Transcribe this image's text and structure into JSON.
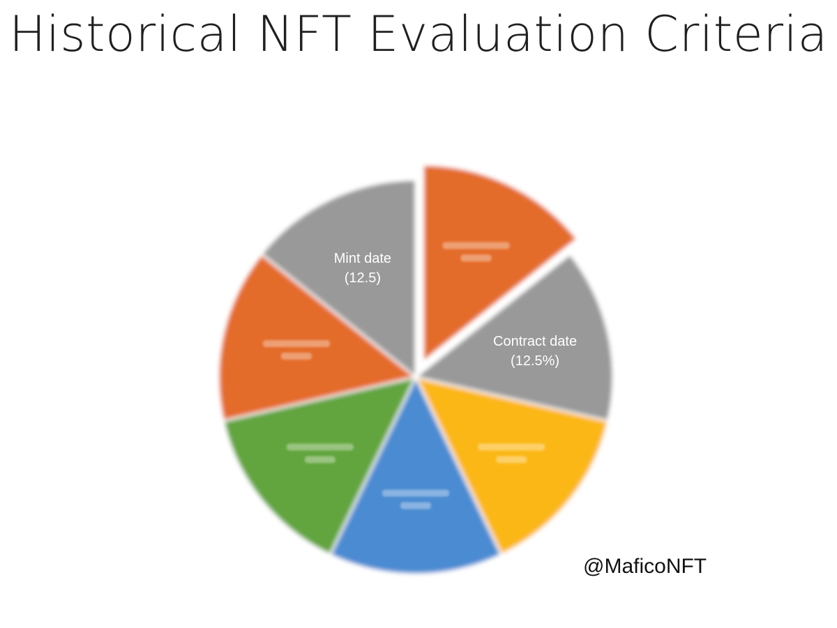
{
  "chart_data": {
    "type": "pie",
    "title": "Historical NFT Evaluation Criteria",
    "slices": [
      {
        "label": "",
        "value": 12.5,
        "color": "#E46C29",
        "exploded": true,
        "legible": false
      },
      {
        "label_line1": "Contract date",
        "label_line2": "(12.5%)",
        "value": 12.5,
        "color": "#999999",
        "exploded": false,
        "legible": true
      },
      {
        "label": "",
        "value": 12.5,
        "color": "#FBB714",
        "exploded": false,
        "legible": false
      },
      {
        "label": "",
        "value": 12.5,
        "color": "#4C8BD1",
        "exploded": false,
        "legible": false
      },
      {
        "label": "",
        "value": 12.5,
        "color": "#62A43E",
        "exploded": false,
        "legible": false
      },
      {
        "label": "",
        "value": 12.5,
        "color": "#E46C29",
        "exploded": false,
        "legible": false
      },
      {
        "label_line1": "Mint date",
        "label_line2": "(12.5)",
        "value": 12.5,
        "color": "#999999",
        "exploded": false,
        "legible": true
      }
    ],
    "legend": "none"
  },
  "watermark": "@MaficoNFT"
}
